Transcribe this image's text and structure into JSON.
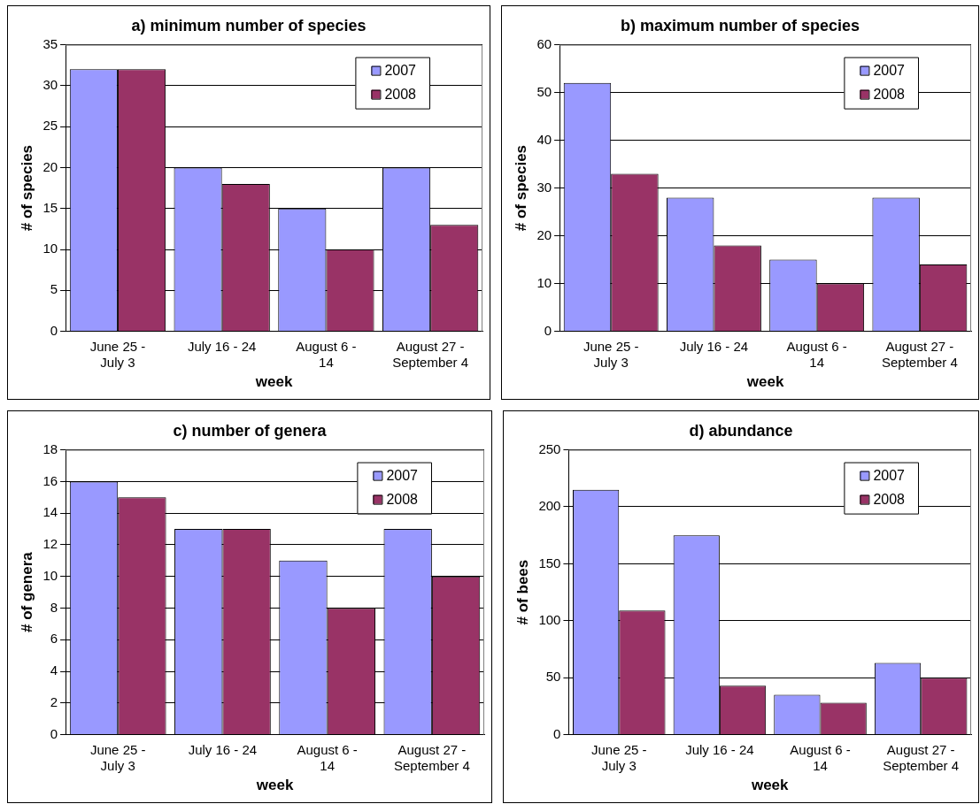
{
  "chart_data": [
    {
      "type": "bar",
      "title": "a) minimum number of species",
      "xlabel": "week",
      "ylabel": "# of species",
      "categories": [
        "June 25 -\nJuly 3",
        "July 16 - 24",
        "August 6 -\n14",
        "August 27 -\nSeptember 4"
      ],
      "series": [
        {
          "name": "2007",
          "color": "#9999ff",
          "values": [
            32,
            20,
            15,
            20
          ]
        },
        {
          "name": "2008",
          "color": "#993366",
          "values": [
            32,
            18,
            10,
            13
          ]
        }
      ],
      "ylim": [
        0,
        35
      ],
      "yticks": [
        0,
        5,
        10,
        15,
        20,
        25,
        30,
        35
      ],
      "grid": "y",
      "legend": "top right"
    },
    {
      "type": "bar",
      "title": "b) maximum number of species",
      "xlabel": "week",
      "ylabel": "# of species",
      "categories": [
        "June 25 -\nJuly 3",
        "July 16 - 24",
        "August 6 -\n14",
        "August 27 -\nSeptember 4"
      ],
      "series": [
        {
          "name": "2007",
          "color": "#9999ff",
          "values": [
            52,
            28,
            15,
            28
          ]
        },
        {
          "name": "2008",
          "color": "#993366",
          "values": [
            33,
            18,
            10,
            14
          ]
        }
      ],
      "ylim": [
        0,
        60
      ],
      "yticks": [
        0,
        10,
        20,
        30,
        40,
        50,
        60
      ],
      "grid": "y",
      "legend": "top right"
    },
    {
      "type": "bar",
      "title": "c) number of genera",
      "xlabel": "week",
      "ylabel": "# of genera",
      "categories": [
        "June 25 -\nJuly 3",
        "July 16 - 24",
        "August 6 -\n14",
        "August 27 -\nSeptember 4"
      ],
      "series": [
        {
          "name": "2007",
          "color": "#9999ff",
          "values": [
            16,
            13,
            11,
            13
          ]
        },
        {
          "name": "2008",
          "color": "#993366",
          "values": [
            15,
            13,
            8,
            10
          ]
        }
      ],
      "ylim": [
        0,
        18
      ],
      "yticks": [
        0,
        2,
        4,
        6,
        8,
        10,
        12,
        14,
        16,
        18
      ],
      "grid": "y",
      "legend": "top right"
    },
    {
      "type": "bar",
      "title": "d) abundance",
      "xlabel": "week",
      "ylabel": "# of bees",
      "categories": [
        "June 25 -\nJuly 3",
        "July 16 - 24",
        "August 6 -\n14",
        "August 27 -\nSeptember 4"
      ],
      "series": [
        {
          "name": "2007",
          "color": "#9999ff",
          "values": [
            215,
            175,
            35,
            63
          ]
        },
        {
          "name": "2008",
          "color": "#993366",
          "values": [
            109,
            43,
            28,
            50
          ]
        }
      ],
      "ylim": [
        0,
        250
      ],
      "yticks": [
        0,
        50,
        100,
        150,
        200,
        250
      ],
      "grid": "y",
      "legend": "top right"
    }
  ]
}
